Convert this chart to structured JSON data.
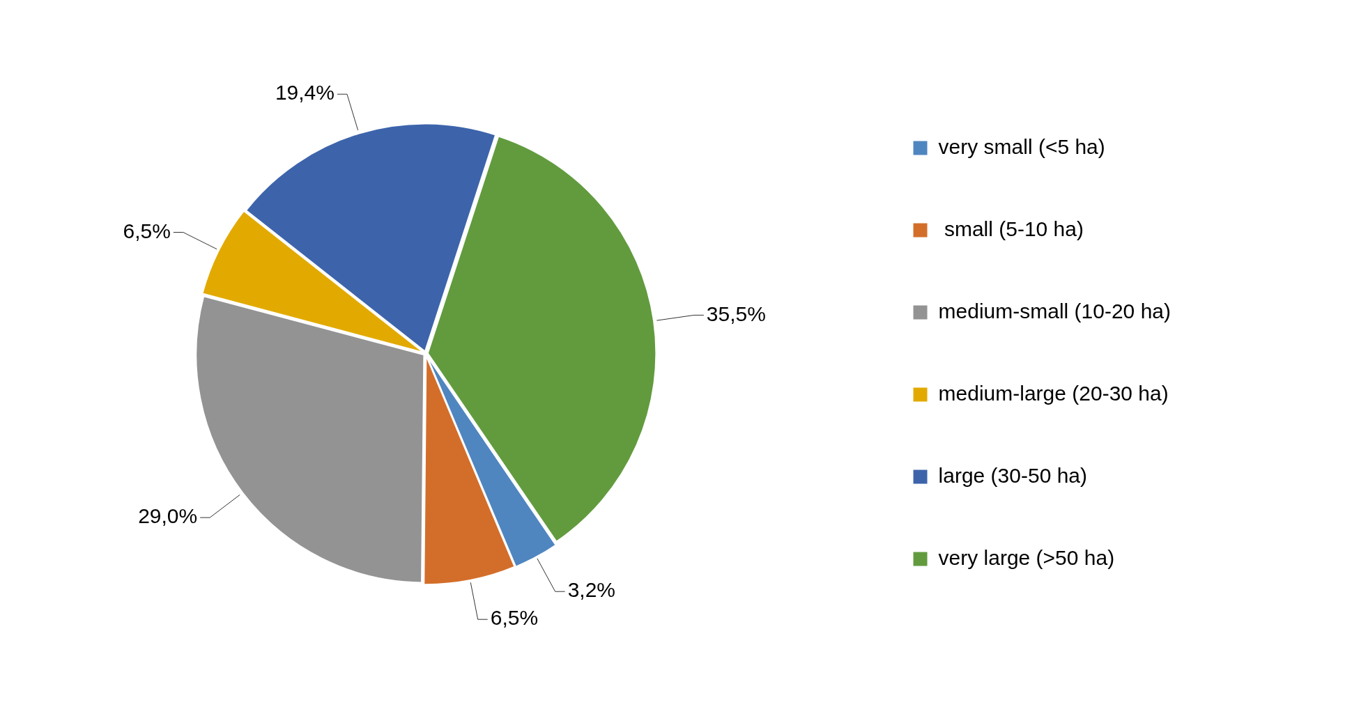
{
  "chart_data": {
    "type": "pie",
    "categories": [
      "very small (<5 ha)",
      " small (5-10 ha)",
      "medium-small (10-20 ha)",
      "medium-large (20-30 ha)",
      "large (30-50 ha)",
      "very large (>50 ha)"
    ],
    "values": [
      3.2,
      6.5,
      29.0,
      6.5,
      19.4,
      35.5
    ],
    "colors": [
      "#4f86c0",
      "#d36e2a",
      "#939393",
      "#e2aa00",
      "#3d64ab",
      "#629b3e"
    ],
    "value_labels": [
      "3,2%",
      "6,5%",
      "29,0%",
      "6,5%",
      "19,4%",
      "35,5%"
    ],
    "legend": "right"
  }
}
